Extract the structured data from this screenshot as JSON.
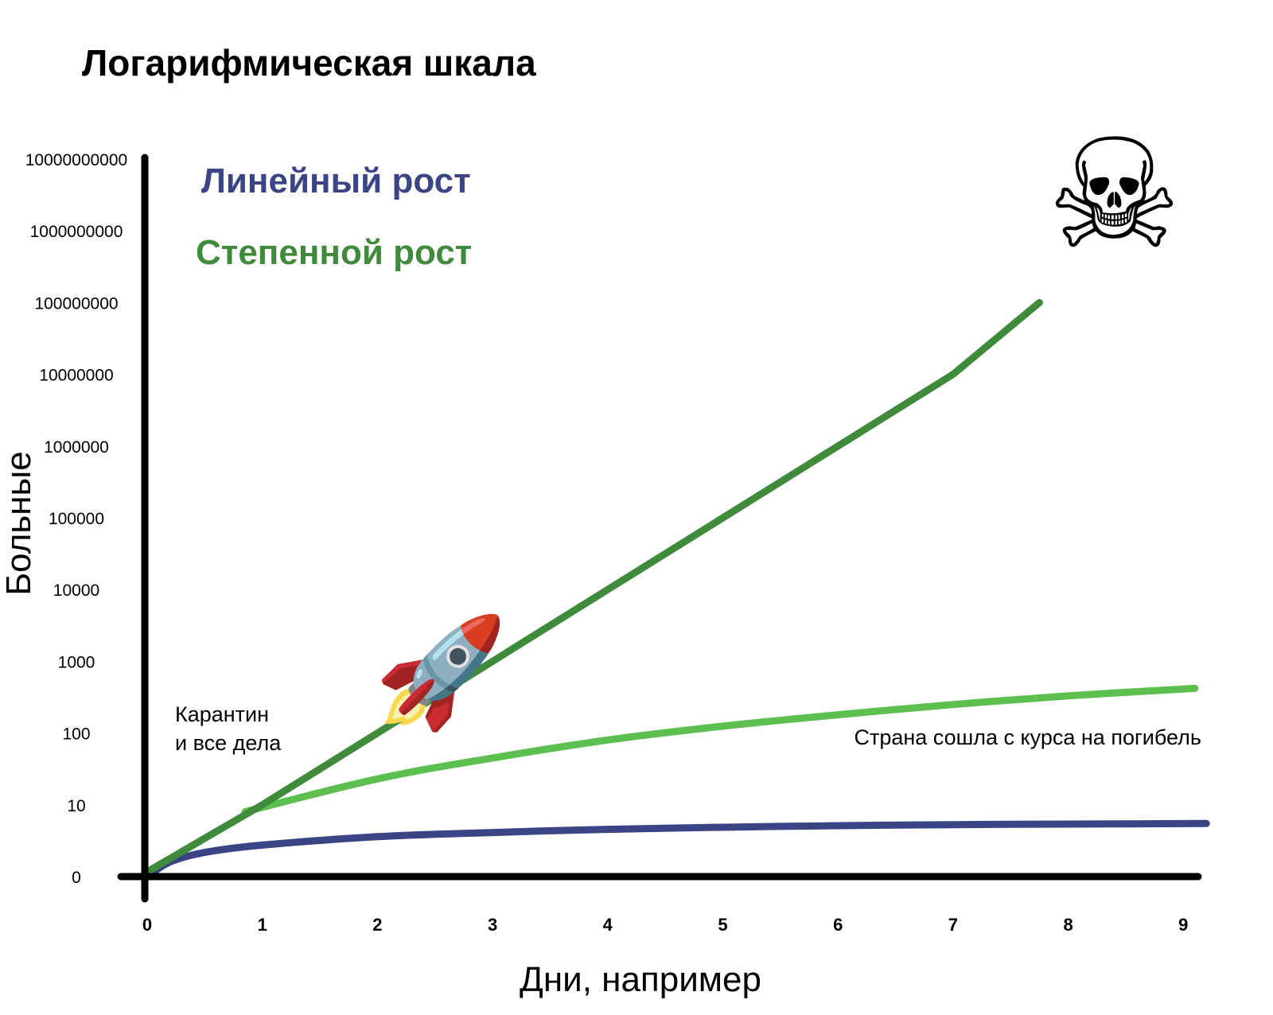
{
  "colors": {
    "linear": "#3b4585",
    "exponential": "#3f8a3b",
    "flattened": "#5cbf4f",
    "axis": "#000000"
  },
  "chart_data": {
    "type": "line",
    "title": "Логарифмическая шкала",
    "xlabel": "Дни, например",
    "ylabel": "Больные",
    "xlim": [
      0,
      9
    ],
    "x_tick_labels": [
      "0",
      "1",
      "2",
      "3",
      "4",
      "5",
      "6",
      "7",
      "8",
      "9"
    ],
    "y_scale": "log",
    "y_tick_labels": [
      "0",
      "10",
      "100",
      "1000",
      "10000",
      "100000",
      "1000000",
      "10000000",
      "100000000",
      "1000000000",
      "10000000000"
    ],
    "grid": false,
    "legend": {
      "position": "top-left",
      "entries": [
        {
          "label": "Линейный рост",
          "series": "linear"
        },
        {
          "label": "Степенной рост",
          "series": "exponential"
        }
      ]
    },
    "series": [
      {
        "id": "exponential",
        "name": "Степенной рост",
        "color": "#3f8a3b",
        "x": [
          0,
          1,
          2,
          3,
          4,
          5,
          6,
          7,
          7.75
        ],
        "y": [
          1,
          10,
          100,
          1000,
          10000,
          100000,
          1000000,
          10000000,
          100000000
        ]
      },
      {
        "id": "flattened",
        "color": "#5cbf4f",
        "x": [
          0.85,
          2,
          3,
          4,
          5,
          6,
          7,
          8,
          9.1
        ],
        "y": [
          8,
          23,
          45,
          80,
          125,
          180,
          250,
          330,
          420
        ]
      },
      {
        "id": "linear",
        "name": "Линейный рост",
        "color": "#3b4585",
        "x": [
          0,
          0.2,
          0.5,
          1,
          2,
          3,
          4,
          5,
          6,
          7,
          8,
          9.2
        ],
        "y": [
          0,
          1.4,
          2.3,
          3.0,
          3.8,
          4.2,
          4.5,
          4.7,
          4.85,
          4.95,
          5.0,
          5.05
        ]
      }
    ],
    "annotations": [
      {
        "id": "quarantine",
        "lines": [
          "Карантин",
          "и все дела"
        ]
      },
      {
        "id": "doom",
        "lines": [
          "Страна сошла с курса на погибель"
        ]
      }
    ],
    "markers": [
      {
        "icon": "rocket-icon",
        "glyph": "🚀",
        "x": 2.55,
        "y": 600
      },
      {
        "icon": "skull-and-crossbones-icon",
        "glyph": "☠",
        "x": 8.4,
        "y": 1000000000
      }
    ]
  }
}
